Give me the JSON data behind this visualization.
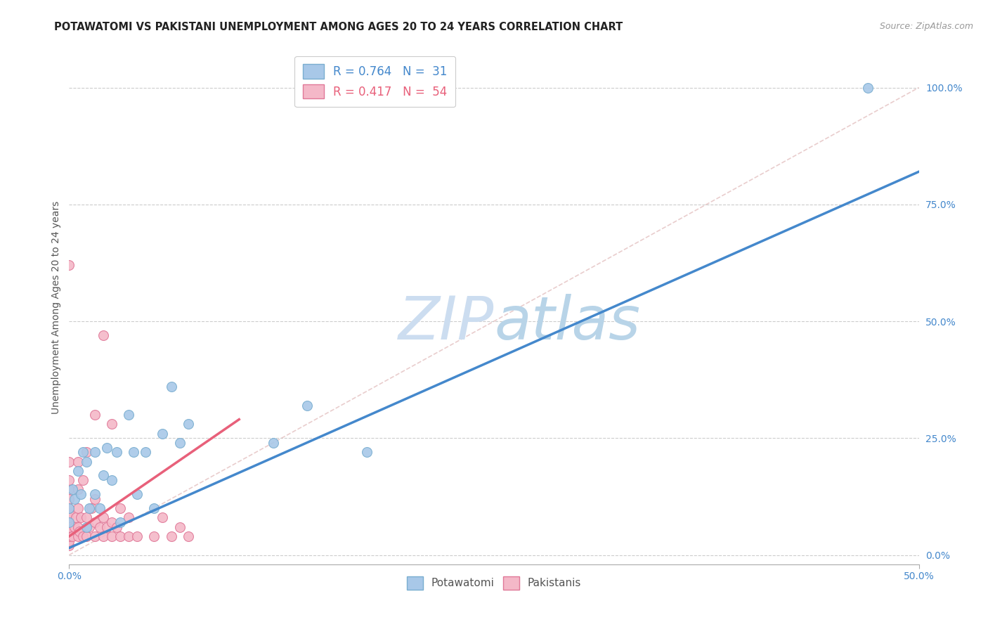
{
  "title": "POTAWATOMI VS PAKISTANI UNEMPLOYMENT AMONG AGES 20 TO 24 YEARS CORRELATION CHART",
  "source": "Source: ZipAtlas.com",
  "ylabel": "Unemployment Among Ages 20 to 24 years",
  "xlim": [
    0.0,
    0.5
  ],
  "ylim": [
    -0.02,
    1.08
  ],
  "ytick_labels_right": [
    "0.0%",
    "25.0%",
    "50.0%",
    "75.0%",
    "100.0%"
  ],
  "yticks_right": [
    0.0,
    0.25,
    0.5,
    0.75,
    1.0
  ],
  "legend1_label": "R = 0.764   N =  31",
  "legend2_label": "R = 0.417   N =  54",
  "legend_bottom_labels": [
    "Potawatomi",
    "Pakistanis"
  ],
  "color_blue": "#a8c8e8",
  "color_blue_edge": "#7aaed0",
  "color_pink": "#f4b8c8",
  "color_pink_edge": "#e07898",
  "color_blue_line": "#4488cc",
  "color_pink_line": "#e8607a",
  "color_diag": "#d8b8b8",
  "watermark_color": "#ccddf0",
  "blue_line_x0": 0.0,
  "blue_line_y0": 0.015,
  "blue_line_x1": 0.5,
  "blue_line_y1": 0.82,
  "pink_line_x0": 0.0,
  "pink_line_y0": 0.04,
  "pink_line_x1": 0.1,
  "pink_line_y1": 0.29,
  "potawatomi_x": [
    0.0,
    0.0,
    0.002,
    0.003,
    0.005,
    0.007,
    0.008,
    0.01,
    0.01,
    0.012,
    0.015,
    0.015,
    0.018,
    0.02,
    0.022,
    0.025,
    0.028,
    0.03,
    0.035,
    0.038,
    0.04,
    0.045,
    0.05,
    0.055,
    0.06,
    0.065,
    0.07,
    0.12,
    0.14,
    0.175,
    0.47
  ],
  "potawatomi_y": [
    0.07,
    0.1,
    0.14,
    0.12,
    0.18,
    0.13,
    0.22,
    0.06,
    0.2,
    0.1,
    0.13,
    0.22,
    0.1,
    0.17,
    0.23,
    0.16,
    0.22,
    0.07,
    0.3,
    0.22,
    0.13,
    0.22,
    0.1,
    0.26,
    0.36,
    0.24,
    0.28,
    0.24,
    0.32,
    0.22,
    1.0
  ],
  "pakistani_x": [
    0.0,
    0.0,
    0.0,
    0.0,
    0.0,
    0.0,
    0.0,
    0.0,
    0.0,
    0.0,
    0.0,
    0.0,
    0.0,
    0.0,
    0.002,
    0.003,
    0.004,
    0.005,
    0.005,
    0.005,
    0.005,
    0.005,
    0.006,
    0.007,
    0.008,
    0.008,
    0.01,
    0.01,
    0.01,
    0.012,
    0.013,
    0.015,
    0.015,
    0.015,
    0.015,
    0.018,
    0.02,
    0.02,
    0.02,
    0.022,
    0.025,
    0.025,
    0.025,
    0.028,
    0.03,
    0.03,
    0.035,
    0.035,
    0.04,
    0.05,
    0.055,
    0.06,
    0.065,
    0.07
  ],
  "pakistani_y": [
    0.02,
    0.03,
    0.04,
    0.05,
    0.06,
    0.07,
    0.08,
    0.09,
    0.1,
    0.12,
    0.14,
    0.16,
    0.62,
    0.2,
    0.04,
    0.06,
    0.08,
    0.04,
    0.06,
    0.1,
    0.14,
    0.2,
    0.05,
    0.08,
    0.04,
    0.16,
    0.04,
    0.08,
    0.22,
    0.06,
    0.1,
    0.04,
    0.07,
    0.12,
    0.3,
    0.06,
    0.04,
    0.08,
    0.47,
    0.06,
    0.04,
    0.07,
    0.28,
    0.06,
    0.04,
    0.1,
    0.04,
    0.08,
    0.04,
    0.04,
    0.08,
    0.04,
    0.06,
    0.04
  ]
}
